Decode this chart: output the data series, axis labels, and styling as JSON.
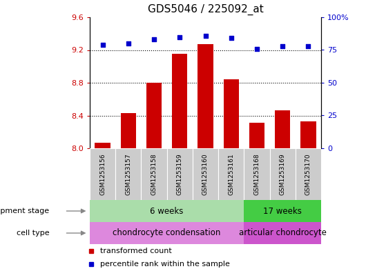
{
  "title": "GDS5046 / 225092_at",
  "samples": [
    "GSM1253156",
    "GSM1253157",
    "GSM1253158",
    "GSM1253159",
    "GSM1253160",
    "GSM1253161",
    "GSM1253168",
    "GSM1253169",
    "GSM1253170"
  ],
  "transformed_counts": [
    8.07,
    8.43,
    8.8,
    9.15,
    9.27,
    8.84,
    8.31,
    8.46,
    8.33
  ],
  "percentile_ranks": [
    79,
    80,
    83,
    85,
    86,
    84,
    76,
    78,
    78
  ],
  "ylim_left": [
    8.0,
    9.6
  ],
  "ylim_right": [
    0,
    100
  ],
  "yticks_left": [
    8.0,
    8.4,
    8.8,
    9.2,
    9.6
  ],
  "yticks_right": [
    0,
    25,
    50,
    75,
    100
  ],
  "bar_color": "#cc0000",
  "scatter_color": "#0000cc",
  "background_color": "#ffffff",
  "development_stage_groups": [
    {
      "label": "6 weeks",
      "start": 0,
      "end": 5,
      "color": "#aaddaa"
    },
    {
      "label": "17 weeks",
      "start": 6,
      "end": 8,
      "color": "#44cc44"
    }
  ],
  "cell_type_groups": [
    {
      "label": "chondrocyte condensation",
      "start": 0,
      "end": 5,
      "color": "#dd88dd"
    },
    {
      "label": "articular chondrocyte",
      "start": 6,
      "end": 8,
      "color": "#cc55cc"
    }
  ],
  "dev_stage_label": "development stage",
  "cell_type_label": "cell type",
  "legend_bar_label": "transformed count",
  "legend_scatter_label": "percentile rank within the sample",
  "right_axis_color": "#0000cc",
  "left_axis_color": "#cc0000",
  "sample_box_color": "#cccccc",
  "arrow_color": "#888888"
}
